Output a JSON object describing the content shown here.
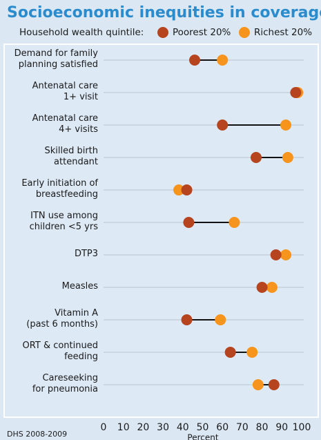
{
  "chart_data": {
    "type": "dumbbell",
    "title": "Socioeconomic inequities in coverage",
    "legend_title": "Household wealth quintile:",
    "categories": [
      "Demand for family\nplanning satisfied",
      "Antenatal care\n1+ visit",
      "Antenatal care\n4+ visits",
      "Skilled birth\nattendant",
      "Early initiation of\nbreastfeeding",
      "ITN use among\nchildren <5 yrs",
      "DTP3",
      "Measles",
      "Vitamin A\n(past 6 months)",
      "ORT & continued\nfeeding",
      "Careseeking\nfor pneumonia"
    ],
    "series": [
      {
        "name": "Poorest 20%",
        "color": "#b5441f",
        "values": [
          46,
          97,
          60,
          77,
          42,
          43,
          87,
          80,
          42,
          64,
          86
        ]
      },
      {
        "name": "Richest 20%",
        "color": "#f7941d",
        "values": [
          60,
          98,
          92,
          93,
          38,
          66,
          92,
          85,
          59,
          75,
          78
        ]
      }
    ],
    "xlim": [
      0,
      100
    ],
    "xticks": [
      0,
      10,
      20,
      30,
      40,
      50,
      60,
      70,
      80,
      90,
      100
    ],
    "xlabel": "Percent",
    "source": "DHS 2008-2009"
  }
}
